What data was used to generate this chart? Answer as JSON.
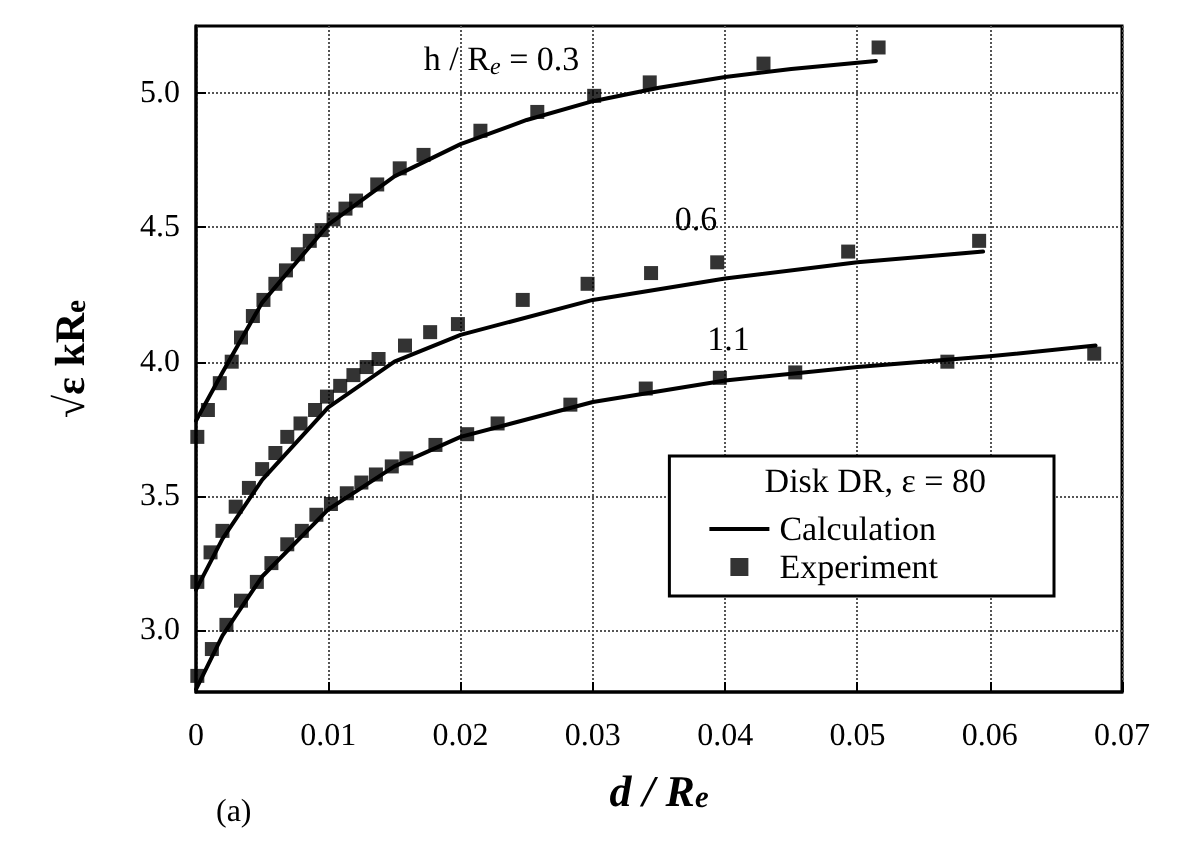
{
  "chart_data": {
    "type": "line",
    "xlabel": "d / R$_{e}$",
    "ylabel": "√ε kR$_{e}$",
    "legend_title": "Disk DR, ε = 80",
    "legend": "bottom right",
    "grid": true,
    "line_style": "solid",
    "xlim": [
      0,
      0.07
    ],
    "xticks": [
      0,
      0.01,
      0.02,
      0.03,
      0.04,
      0.05,
      0.06,
      0.07
    ],
    "ylim": [
      2.77,
      5.25
    ],
    "yticks": [
      {
        "value": 3,
        "label": "3.0"
      },
      {
        "value": 3.5,
        "label": "3.5"
      },
      {
        "value": 4,
        "label": "4.0"
      },
      {
        "value": 4.5,
        "label": "4.5"
      },
      {
        "value": 5,
        "label": "5.0"
      }
    ],
    "annotations": [
      "h / R$_{e}$ = 0.3",
      "0.6",
      "1.1",
      "(a)"
    ],
    "series": [
      {
        "name": "Calculation",
        "marker": "none",
        "color": "#000000",
        "x": [
          0,
          0.002,
          0.005,
          0.01,
          0.015,
          0.02,
          0.025,
          0.03,
          0.035,
          0.04,
          0.045,
          0.0514
        ],
        "values": [
          3.78,
          3.96,
          4.22,
          4.51,
          4.69,
          4.81,
          4.9,
          4.97,
          5.02,
          5.06,
          5.09,
          5.12
        ]
      },
      {
        "marker": "none",
        "color": "#000000",
        "x": [
          0,
          0.002,
          0.005,
          0.01,
          0.015,
          0.02,
          0.03,
          0.04,
          0.05,
          0.0595
        ],
        "values": [
          3.15,
          3.34,
          3.56,
          3.83,
          4.0,
          4.1,
          4.23,
          4.31,
          4.37,
          4.41
        ]
      },
      {
        "marker": "none",
        "color": "#000000",
        "x": [
          0,
          0.002,
          0.005,
          0.01,
          0.015,
          0.02,
          0.03,
          0.04,
          0.05,
          0.06,
          0.068
        ],
        "values": [
          2.78,
          2.98,
          3.2,
          3.45,
          3.61,
          3.72,
          3.85,
          3.93,
          3.98,
          4.02,
          4.06
        ]
      },
      {
        "name": "Experiment",
        "type": "scatter",
        "marker": "square",
        "color": "#000000",
        "x": [
          0.0001,
          0.0009,
          0.0018,
          0.0027,
          0.0034,
          0.0043,
          0.0051,
          0.006,
          0.0068,
          0.0077,
          0.0086,
          0.0095,
          0.0104,
          0.0113,
          0.0121,
          0.0137,
          0.0154,
          0.0172,
          0.0215,
          0.0258,
          0.0301,
          0.0343,
          0.0429,
          0.0516
        ],
        "values": [
          3.72,
          3.82,
          3.92,
          4.0,
          4.09,
          4.17,
          4.23,
          4.29,
          4.34,
          4.4,
          4.45,
          4.49,
          4.53,
          4.57,
          4.6,
          4.66,
          4.72,
          4.77,
          4.86,
          4.93,
          4.99,
          5.04,
          5.11,
          5.17
        ]
      },
      {
        "type": "scatter",
        "marker": "square",
        "color": "#000000",
        "x": [
          0.0001,
          0.0011,
          0.002,
          0.003,
          0.004,
          0.005,
          0.006,
          0.0069,
          0.0079,
          0.009,
          0.0099,
          0.0109,
          0.0119,
          0.0129,
          0.0138,
          0.0158,
          0.0177,
          0.0198,
          0.0247,
          0.0296,
          0.0344,
          0.0394,
          0.0493,
          0.0592
        ],
        "values": [
          3.18,
          3.29,
          3.37,
          3.46,
          3.53,
          3.6,
          3.66,
          3.72,
          3.77,
          3.82,
          3.87,
          3.91,
          3.95,
          3.98,
          4.01,
          4.06,
          4.11,
          4.14,
          4.23,
          4.29,
          4.33,
          4.37,
          4.41,
          4.45
        ]
      },
      {
        "type": "scatter",
        "marker": "square",
        "color": "#000000",
        "x": [
          0.0001,
          0.0012,
          0.0023,
          0.0034,
          0.0046,
          0.0057,
          0.0069,
          0.008,
          0.0091,
          0.0102,
          0.0114,
          0.0125,
          0.0136,
          0.0148,
          0.0159,
          0.0181,
          0.0205,
          0.0228,
          0.0283,
          0.034,
          0.0396,
          0.0453,
          0.0568,
          0.0679
        ],
        "values": [
          2.83,
          2.93,
          3.02,
          3.11,
          3.18,
          3.25,
          3.32,
          3.37,
          3.43,
          3.47,
          3.51,
          3.55,
          3.58,
          3.61,
          3.64,
          3.69,
          3.73,
          3.77,
          3.84,
          3.9,
          3.94,
          3.96,
          4.0,
          4.03
        ]
      }
    ]
  }
}
